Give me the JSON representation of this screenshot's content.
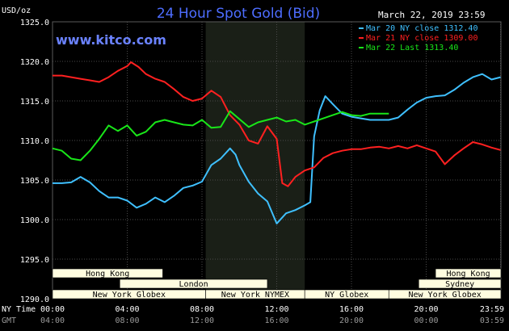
{
  "chart_data": {
    "type": "line",
    "title": "24 Hour Spot Gold (Bid)",
    "subtitle_url": "www.kitco.com",
    "date_stamp": "March 22, 2019 23:59",
    "y_unit_label": "USD/oz",
    "ylim": [
      1290,
      1325
    ],
    "y_ticks": [
      "1325.0",
      "1320.0",
      "1315.0",
      "1310.0",
      "1305.0",
      "1300.0",
      "1295.0",
      "1290.0"
    ],
    "y_tick_values": [
      1325,
      1320,
      1315,
      1310,
      1305,
      1300,
      1295,
      1290
    ],
    "x_row_labels": {
      "ny": "NY Time",
      "gmt": "GMT"
    },
    "x_ticks_ny": [
      "00:00",
      "04:00",
      "08:00",
      "12:00",
      "16:00",
      "20:00",
      "23:59"
    ],
    "x_ticks_gmt": [
      "04:00",
      "08:00",
      "12:00",
      "16:00",
      "20:00",
      "00:00",
      "03:59"
    ],
    "x_tick_hours": [
      0,
      4,
      8,
      12,
      16,
      20,
      23.98
    ],
    "xlim_hours": [
      0,
      24
    ],
    "highlight_hours": [
      8.2,
      13.5
    ],
    "legend_position": "top-right",
    "series": [
      {
        "name": "Mar 20 NY close 1312.40",
        "color": "#3fc0ff",
        "x": [
          0,
          0.5,
          1,
          1.5,
          2,
          2.5,
          3,
          3.5,
          4,
          4.5,
          5,
          5.5,
          6,
          6.5,
          7,
          7.5,
          8,
          8.5,
          9,
          9.5,
          9.8,
          10,
          10.5,
          11,
          11.5,
          12,
          12.5,
          13,
          13.5,
          13.8,
          14,
          14.3,
          14.6,
          15,
          15.5,
          16,
          16.5,
          17,
          17.5,
          18,
          18.5,
          19,
          19.5,
          20,
          20.5,
          21,
          21.5,
          22,
          22.5,
          23,
          23.5,
          23.98
        ],
        "values": [
          1304.6,
          1304.6,
          1304.7,
          1305.4,
          1304.7,
          1303.6,
          1302.8,
          1302.8,
          1302.4,
          1301.5,
          1302.0,
          1302.8,
          1302.2,
          1303.0,
          1304.0,
          1304.3,
          1304.8,
          1306.9,
          1307.7,
          1309.0,
          1308.2,
          1306.9,
          1304.8,
          1303.3,
          1302.3,
          1299.5,
          1300.8,
          1301.2,
          1301.8,
          1302.2,
          1310.5,
          1313.8,
          1315.6,
          1314.6,
          1313.4,
          1313.0,
          1312.8,
          1312.6,
          1312.6,
          1312.6,
          1312.9,
          1313.9,
          1314.8,
          1315.4,
          1315.6,
          1315.7,
          1316.4,
          1317.3,
          1318.0,
          1318.4,
          1317.7,
          1318.0
        ]
      },
      {
        "name": "Mar 21 NY close 1309.00",
        "color": "#ff2020",
        "x": [
          0,
          0.5,
          1,
          1.5,
          2,
          2.5,
          3,
          3.5,
          4,
          4.2,
          4.6,
          5,
          5.5,
          6,
          6.5,
          7,
          7.5,
          8,
          8.5,
          9,
          9.5,
          10,
          10.5,
          11,
          11.5,
          12,
          12.3,
          12.6,
          13,
          13.5,
          14,
          14.5,
          15,
          15.5,
          16,
          16.5,
          17,
          17.5,
          18,
          18.5,
          19,
          19.5,
          20,
          20.5,
          21,
          21.5,
          22,
          22.5,
          23,
          23.5,
          23.98
        ],
        "values": [
          1318.2,
          1318.2,
          1318.0,
          1317.8,
          1317.6,
          1317.4,
          1318.0,
          1318.8,
          1319.4,
          1319.9,
          1319.3,
          1318.4,
          1317.8,
          1317.4,
          1316.5,
          1315.5,
          1315.0,
          1315.3,
          1316.3,
          1315.5,
          1313.2,
          1312.0,
          1310.0,
          1309.6,
          1311.8,
          1310.2,
          1304.6,
          1304.2,
          1305.4,
          1306.2,
          1306.6,
          1307.8,
          1308.4,
          1308.7,
          1308.9,
          1308.9,
          1309.1,
          1309.2,
          1309.0,
          1309.3,
          1309.0,
          1309.4,
          1309.0,
          1308.6,
          1307.0,
          1308.1,
          1309.0,
          1309.8,
          1309.5,
          1309.1,
          1308.8
        ]
      },
      {
        "name": "Mar 22 Last 1313.40",
        "color": "#19e619",
        "x": [
          0,
          0.5,
          1,
          1.5,
          2,
          2.5,
          3,
          3.5,
          4,
          4.5,
          5,
          5.5,
          6,
          6.5,
          7,
          7.5,
          8,
          8.5,
          9,
          9.5,
          10,
          10.5,
          11,
          11.5,
          12,
          12.5,
          13,
          13.5,
          14,
          14.5,
          15,
          15.5,
          16,
          16.5,
          17,
          17.5,
          18
        ],
        "values": [
          1309.0,
          1308.7,
          1307.7,
          1307.5,
          1308.7,
          1310.2,
          1311.9,
          1311.2,
          1311.9,
          1310.6,
          1311.1,
          1312.3,
          1312.6,
          1312.3,
          1312.0,
          1311.9,
          1312.6,
          1311.6,
          1311.7,
          1313.7,
          1312.7,
          1311.7,
          1312.3,
          1312.6,
          1312.9,
          1312.4,
          1312.6,
          1312.0,
          1312.4,
          1312.8,
          1313.2,
          1313.6,
          1313.2,
          1313.1,
          1313.4,
          1313.4,
          1313.4
        ]
      }
    ],
    "sessions": [
      {
        "label": "Hong Kong",
        "row": 0,
        "start_hour": 0,
        "end_hour": 5.9
      },
      {
        "label": "London",
        "row": 1,
        "start_hour": 3.6,
        "end_hour": 11.5
      },
      {
        "label": "New York Globex",
        "row": 2,
        "start_hour": 0,
        "end_hour": 8.2
      },
      {
        "label": "New York NYMEX",
        "row": 2,
        "start_hour": 8.2,
        "end_hour": 13.5
      },
      {
        "label": "NY Globex",
        "row": 2,
        "start_hour": 13.5,
        "end_hour": 18
      },
      {
        "label": "Hong Kong",
        "row": 0,
        "start_hour": 20.5,
        "end_hour": 24
      },
      {
        "label": "Sydney",
        "row": 1,
        "start_hour": 19.6,
        "end_hour": 24
      },
      {
        "label": "New York Globex",
        "row": 2,
        "start_hour": 18,
        "end_hour": 24
      }
    ],
    "colors": {
      "background": "#000000",
      "plot_background": "#000000",
      "highlight": "#1a1f17",
      "grid": "#4a4a4a",
      "title": "#4d6dff",
      "url": "#6a82ff",
      "session_fill": "#fffde0",
      "session_text": "#000000"
    }
  }
}
